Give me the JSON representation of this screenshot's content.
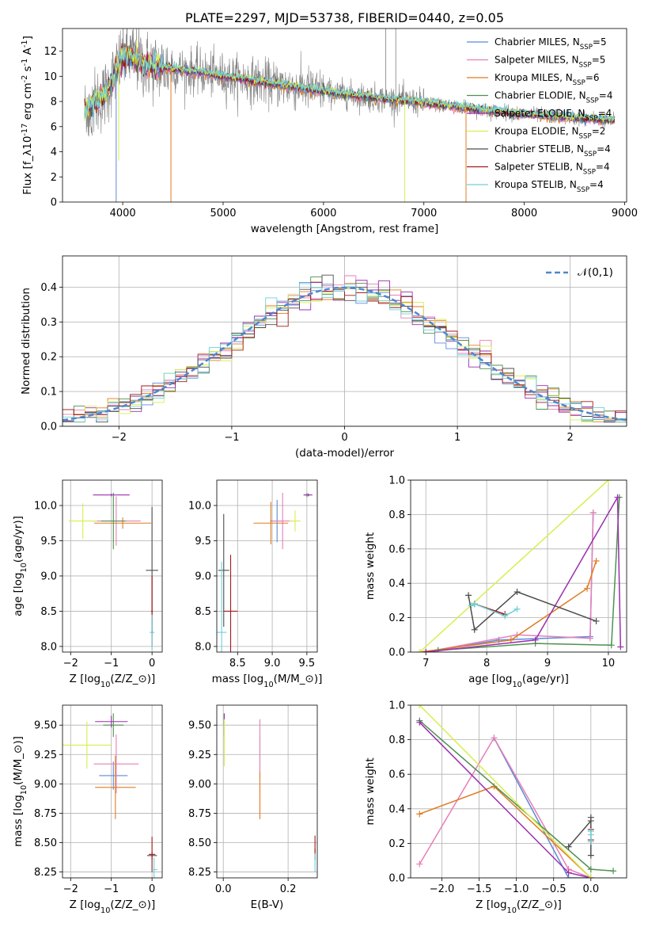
{
  "colors": {
    "Chabrier MILES": "#5b8bd8",
    "Salpeter MILES": "#e67fb8",
    "Kroupa MILES": "#e07b20",
    "Chabrier ELODIE": "#4f9150",
    "Salpeter ELODIE": "#9b2fae",
    "Kroupa ELODIE": "#d5ef4e",
    "Chabrier STELIB": "#4d4d4d",
    "Salpeter STELIB": "#a31818",
    "Kroupa STELIB": "#6fd0d8",
    "data": "#808080"
  },
  "chart_data": [
    {
      "id": "spectrum",
      "type": "line",
      "title": "PLATE=2297, MJD=53738, FIBERID=0440, z=0.05",
      "xlabel": "wavelength [Angstrom, rest frame]",
      "ylabel": "Flux [f$_\\lambda$10$^{-17}$ erg cm$^{-2}$ s$^{-1}$ A$^{-1}$]",
      "xlim": [
        3400,
        9020
      ],
      "ylim": [
        0,
        13.8
      ],
      "xticks": [
        4000,
        5000,
        6000,
        7000,
        8000,
        9000
      ],
      "yticks": [
        0,
        2,
        4,
        6,
        8,
        10,
        12
      ],
      "grid": false,
      "legend_position": "top-right",
      "legend": [
        {
          "name": "Chabrier MILES",
          "nssp": "5"
        },
        {
          "name": "Salpeter MILES",
          "nssp": "5"
        },
        {
          "name": "Kroupa MILES",
          "nssp": "6"
        },
        {
          "name": "Chabrier ELODIE",
          "nssp": "4"
        },
        {
          "name": "Salpeter ELODIE",
          "nssp": "4"
        },
        {
          "name": "Kroupa ELODIE",
          "nssp": "2"
        },
        {
          "name": "Chabrier STELIB",
          "nssp": "4"
        },
        {
          "name": "Salpeter STELIB",
          "nssp": "4"
        },
        {
          "name": "Kroupa STELIB",
          "nssp": "4"
        }
      ],
      "continuum": {
        "x": [
          3620,
          3700,
          3800,
          3850,
          3900,
          3950,
          4000,
          4100,
          4200,
          4300,
          4500,
          4700,
          5000,
          5500,
          6000,
          6500,
          7000,
          7500,
          8000,
          8500,
          8900
        ],
        "y": [
          7.3,
          7.8,
          8.3,
          9.0,
          9.8,
          10.8,
          11.5,
          11.6,
          11.0,
          10.8,
          10.6,
          10.4,
          10.0,
          9.4,
          8.8,
          8.3,
          7.9,
          7.4,
          7.0,
          6.7,
          6.5
        ]
      },
      "model_dips": [
        {
          "series": "Chabrier MILES",
          "x": 3935,
          "y": 0
        },
        {
          "series": "Kroupa MILES",
          "x": 4480,
          "y": 0
        },
        {
          "series": "Kroupa ELODIE",
          "x": 3960,
          "y": 3.3
        },
        {
          "series": "Kroupa ELODIE",
          "x": 6810,
          "y": 0
        },
        {
          "series": "Kroupa MILES",
          "x": 7420,
          "y": 0
        }
      ],
      "data_spikes": [
        {
          "x": 6620,
          "y": 13.8
        },
        {
          "x": 6720,
          "y": 13.8
        }
      ]
    },
    {
      "id": "residuals",
      "type": "step",
      "xlabel": "(data-model)/error",
      "ylabel": "Normed distribution",
      "xlim": [
        -2.5,
        2.5
      ],
      "ylim": [
        0,
        0.49
      ],
      "xticks": [
        -2,
        -1,
        0,
        1,
        2
      ],
      "yticks": [
        0.0,
        0.1,
        0.2,
        0.3,
        0.4
      ],
      "grid": true,
      "legend_position": "top-right",
      "reference": {
        "label": "$\\mathcal{N}(0,1)$",
        "mean": 0,
        "sigma": 1
      },
      "bins": {
        "start": -2.5,
        "width": 0.1,
        "count": 50
      }
    },
    {
      "id": "age-vs-Z",
      "type": "errorbar",
      "xlabel": "Z [log$_{10}$($Z/Z_\\odot$)]",
      "ylabel": "age  [log$_{10}$($age/yr$)]",
      "xlim": [
        -2.2,
        0.25
      ],
      "ylim": [
        7.92,
        10.36
      ],
      "xticks": [
        -2,
        -1,
        0
      ],
      "yticks": [
        8.0,
        8.5,
        9.0,
        9.5,
        10.0
      ],
      "grid": true,
      "series": [
        {
          "name": "Chabrier MILES",
          "x": 0.0,
          "y": 8.2,
          "xerr": 0.05,
          "yerr": 0.02
        },
        {
          "name": "Salpeter MILES",
          "x": -0.88,
          "y": 9.78,
          "xerr": 0.6,
          "yerr": 0.35
        },
        {
          "name": "Kroupa MILES",
          "x": -0.72,
          "y": 9.75,
          "xerr": 0.7,
          "yerr": 0.08
        },
        {
          "name": "Chabrier ELODIE",
          "x": -0.95,
          "y": 9.78,
          "xerr": 0.3,
          "yerr": 0.4
        },
        {
          "name": "Salpeter ELODIE",
          "x": -1.0,
          "y": 10.15,
          "xerr": 0.45,
          "yerr": 0.02
        },
        {
          "name": "Kroupa ELODIE",
          "x": -1.7,
          "y": 9.78,
          "xerr": 0.35,
          "yerr": 0.25
        },
        {
          "name": "Chabrier STELIB",
          "x": 0.0,
          "y": 9.08,
          "xerr": 0.15,
          "yerr": 0.9
        },
        {
          "name": "Salpeter STELIB",
          "x": 0.0,
          "y": 8.5,
          "xerr": 0.02,
          "yerr": 0.5
        },
        {
          "name": "Kroupa STELIB",
          "x": 0.0,
          "y": 8.2,
          "xerr": 0.05,
          "yerr": 0.25
        }
      ]
    },
    {
      "id": "age-vs-mass",
      "type": "errorbar",
      "xlabel": "mass [log$_{10}$($M/M_\\odot$)]",
      "ylabel": "",
      "xlim": [
        8.2,
        9.65
      ],
      "ylim": [
        7.92,
        10.36
      ],
      "xticks": [
        8.5,
        9.0,
        9.5
      ],
      "yticks": [
        8.0,
        8.5,
        9.0,
        9.5,
        10.0
      ],
      "grid": true,
      "series": [
        {
          "name": "Chabrier MILES",
          "x": 9.07,
          "y": 9.78,
          "xerr": 0.1,
          "yerr": 0.3
        },
        {
          "name": "Salpeter MILES",
          "x": 9.15,
          "y": 9.78,
          "xerr": 0.15,
          "yerr": 0.4
        },
        {
          "name": "Kroupa MILES",
          "x": 8.98,
          "y": 9.75,
          "xerr": 0.25,
          "yerr": 0.3
        },
        {
          "name": "Chabrier ELODIE",
          "x": 9.5,
          "y": 10.15,
          "xerr": 0.05,
          "yerr": 0.03
        },
        {
          "name": "Salpeter ELODIE",
          "x": 9.52,
          "y": 10.15,
          "xerr": 0.06,
          "yerr": 0.02
        },
        {
          "name": "Kroupa ELODIE",
          "x": 9.33,
          "y": 9.78,
          "xerr": 0.08,
          "yerr": 0.15
        },
        {
          "name": "Chabrier STELIB",
          "x": 8.3,
          "y": 9.08,
          "xerr": 0.08,
          "yerr": 0.8
        },
        {
          "name": "Salpeter STELIB",
          "x": 8.4,
          "y": 8.5,
          "xerr": 0.1,
          "yerr": 0.8
        },
        {
          "name": "Kroupa STELIB",
          "x": 8.27,
          "y": 8.2,
          "xerr": 0.07,
          "yerr": 1.0
        }
      ]
    },
    {
      "id": "weight-vs-age",
      "type": "line",
      "xlabel": "age  [log$_{10}$($age/yr$)]",
      "ylabel": "mass weight",
      "xlim": [
        6.75,
        10.3
      ],
      "ylim": [
        0.0,
        1.0
      ],
      "xticks": [
        7,
        8,
        9,
        10
      ],
      "yticks": [
        0.0,
        0.2,
        0.4,
        0.6,
        0.8,
        1.0
      ],
      "grid": true,
      "series": [
        {
          "name": "Chabrier MILES",
          "x": [
            7.2,
            8.2,
            9.7,
            9.75
          ],
          "y": [
            0.01,
            0.07,
            0.09,
            0.81
          ]
        },
        {
          "name": "Salpeter MILES",
          "x": [
            7.0,
            8.5,
            9.7,
            9.75
          ],
          "y": [
            0.0,
            0.1,
            0.08,
            0.81
          ]
        },
        {
          "name": "Kroupa MILES",
          "x": [
            6.9,
            8.4,
            9.65,
            9.8
          ],
          "y": [
            0.0,
            0.07,
            0.37,
            0.53
          ]
        },
        {
          "name": "Chabrier ELODIE",
          "x": [
            7.2,
            8.8,
            10.05,
            10.18
          ],
          "y": [
            0.01,
            0.05,
            0.04,
            0.9
          ]
        },
        {
          "name": "Salpeter ELODIE",
          "x": [
            7.0,
            8.8,
            10.15,
            10.2
          ],
          "y": [
            0.0,
            0.07,
            0.9,
            0.03
          ]
        },
        {
          "name": "Kroupa ELODIE",
          "x": [
            6.9,
            10.0
          ],
          "y": [
            0.0,
            1.0
          ]
        },
        {
          "name": "Chabrier STELIB",
          "x": [
            7.7,
            7.8,
            8.5,
            9.8
          ],
          "y": [
            0.33,
            0.13,
            0.35,
            0.18
          ]
        },
        {
          "name": "Salpeter STELIB",
          "x": [
            7.8,
            8.3
          ],
          "y": [
            0.28,
            0.22
          ]
        },
        {
          "name": "Kroupa STELIB",
          "x": [
            7.75,
            7.8,
            8.3,
            8.5
          ],
          "y": [
            0.27,
            0.28,
            0.21,
            0.25
          ]
        }
      ]
    },
    {
      "id": "mass-vs-Z",
      "type": "errorbar",
      "xlabel": "Z [log$_{10}$($Z/Z_\\odot$)]",
      "ylabel": "mass [log$_{10}$($M/M_\\odot$)]",
      "xlim": [
        -2.2,
        0.25
      ],
      "ylim": [
        8.2,
        9.67
      ],
      "xticks": [
        -2,
        -1,
        0
      ],
      "yticks": [
        8.25,
        8.5,
        8.75,
        9.0,
        9.25,
        9.5
      ],
      "grid": true,
      "series": [
        {
          "name": "Chabrier MILES",
          "x": -0.95,
          "y": 9.07,
          "xerr": 0.35,
          "yerr": 0.12
        },
        {
          "name": "Salpeter MILES",
          "x": -0.88,
          "y": 9.17,
          "xerr": 0.55,
          "yerr": 0.25
        },
        {
          "name": "Kroupa MILES",
          "x": -0.9,
          "y": 8.97,
          "xerr": 0.5,
          "yerr": 0.27
        },
        {
          "name": "Chabrier ELODIE",
          "x": -0.95,
          "y": 9.5,
          "xerr": 0.25,
          "yerr": 0.1
        },
        {
          "name": "Salpeter ELODIE",
          "x": -1.0,
          "y": 9.53,
          "xerr": 0.4,
          "yerr": 0.05
        },
        {
          "name": "Kroupa ELODIE",
          "x": -1.6,
          "y": 9.33,
          "xerr": 0.6,
          "yerr": 0.2
        },
        {
          "name": "Chabrier STELIB",
          "x": 0.0,
          "y": 8.39,
          "xerr": 0.12,
          "yerr": 0.03
        },
        {
          "name": "Salpeter STELIB",
          "x": 0.0,
          "y": 8.4,
          "xerr": 0.08,
          "yerr": 0.15
        },
        {
          "name": "Kroupa STELIB",
          "x": 0.05,
          "y": 8.27,
          "xerr": 0.08,
          "yerr": 0.1
        }
      ]
    },
    {
      "id": "mass-vs-EBV",
      "type": "errorbar",
      "xlabel": "E(B-V)",
      "ylabel": "",
      "xlim": [
        -0.02,
        0.29
      ],
      "ylim": [
        8.2,
        9.67
      ],
      "xticks": [
        0.0,
        0.2
      ],
      "yticks": [
        8.25,
        8.5,
        8.75,
        9.0,
        9.25,
        9.5
      ],
      "grid": true,
      "series": [
        {
          "name": "Chabrier MILES",
          "x": 0.113,
          "y": 9.25,
          "xerr": 0.001,
          "yerr": 0.15
        },
        {
          "name": "Salpeter MILES",
          "x": 0.113,
          "y": 9.3,
          "xerr": 0.001,
          "yerr": 0.25
        },
        {
          "name": "Kroupa MILES",
          "x": 0.113,
          "y": 8.9,
          "xerr": 0.001,
          "yerr": 0.2
        },
        {
          "name": "Chabrier ELODIE",
          "x": 0.003,
          "y": 9.5,
          "xerr": 0.001,
          "yerr": 0.1
        },
        {
          "name": "Salpeter ELODIE",
          "x": 0.003,
          "y": 9.55,
          "xerr": 0.001,
          "yerr": 0.05
        },
        {
          "name": "Kroupa ELODIE",
          "x": 0.003,
          "y": 9.35,
          "xerr": 0.001,
          "yerr": 0.2
        },
        {
          "name": "Chabrier STELIB",
          "x": 0.283,
          "y": 8.4,
          "xerr": 0.001,
          "yerr": 0.05
        },
        {
          "name": "Salpeter STELIB",
          "x": 0.283,
          "y": 8.48,
          "xerr": 0.001,
          "yerr": 0.08
        },
        {
          "name": "Kroupa STELIB",
          "x": 0.283,
          "y": 8.33,
          "xerr": 0.001,
          "yerr": 0.08
        }
      ]
    },
    {
      "id": "weight-vs-Z",
      "type": "line",
      "xlabel": "Z [log$_{10}$($Z/Z_\\odot$)]",
      "ylabel": "mass weight",
      "xlim": [
        -2.42,
        0.48
      ],
      "ylim": [
        0.0,
        1.0
      ],
      "xticks": [
        -2.0,
        -1.5,
        -1.0,
        -0.5,
        0.0
      ],
      "yticks": [
        0.0,
        0.2,
        0.4,
        0.6,
        0.8,
        1.0
      ],
      "grid": true,
      "series": [
        {
          "name": "Chabrier MILES",
          "x": [
            -1.3,
            -0.3,
            0.0
          ],
          "y": [
            0.81,
            0.0,
            0.0
          ]
        },
        {
          "name": "Salpeter MILES",
          "x": [
            -2.3,
            -1.3,
            -0.3,
            0.0
          ],
          "y": [
            0.08,
            0.81,
            0.05,
            0.0
          ]
        },
        {
          "name": "Kroupa MILES",
          "x": [
            -2.3,
            -1.3,
            0.0
          ],
          "y": [
            0.37,
            0.53,
            0.0
          ]
        },
        {
          "name": "Chabrier ELODIE",
          "x": [
            -2.3,
            0.0,
            0.3
          ],
          "y": [
            0.91,
            0.05,
            0.04
          ]
        },
        {
          "name": "Salpeter ELODIE",
          "x": [
            -2.3,
            -0.3,
            0.0
          ],
          "y": [
            0.9,
            0.03,
            0.0
          ]
        },
        {
          "name": "Kroupa ELODIE",
          "x": [
            -2.3,
            0.0
          ],
          "y": [
            1.0,
            0.0
          ]
        },
        {
          "name": "Chabrier STELIB",
          "x": [
            -0.3,
            0.0,
            0.0,
            0.0
          ],
          "y": [
            0.18,
            0.33,
            0.13,
            0.35
          ]
        },
        {
          "name": "Salpeter STELIB",
          "x": [
            0.0,
            0.0
          ],
          "y": [
            0.28,
            0.22
          ]
        },
        {
          "name": "Kroupa STELIB",
          "x": [
            0.0,
            0.0,
            0.0
          ],
          "y": [
            0.27,
            0.21,
            0.25
          ]
        }
      ]
    }
  ]
}
